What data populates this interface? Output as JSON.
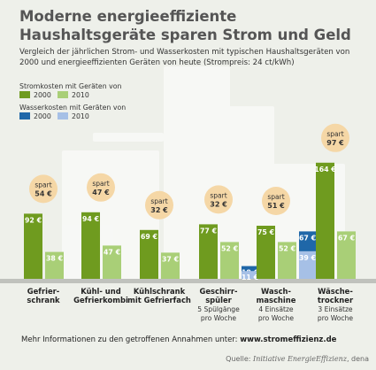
{
  "title": "Moderne energieeffiziente Haushaltsgeräte sparen Strom und Geld",
  "subtitle": "Vergleich der jährlichen Strom- und Wasserkosten mit typischen Haushaltsgeräten von 2000 und energieeffizienten Geräten von heute (Strompreis: 24 ct/kWh)",
  "footer": {
    "info_prefix": "Mehr Informationen zu den getroffenen Annahmen unter:",
    "info_link": "www.stromeffizienz.de",
    "source_prefix": "Quelle:",
    "source_name": "Initiative EnergieEffizienz",
    "source_suffix": ", dena"
  },
  "colors": {
    "strom_2000": "#6f9b1f",
    "strom_2010": "#a9cf77",
    "wasser_2000": "#1f67a8",
    "wasser_2010": "#a6c0e6",
    "spart_circle": "#f5d7a6",
    "background": "#eef0ea",
    "floor": "#c0c2bd"
  },
  "chart_data": {
    "type": "bar",
    "title": "Moderne energieeffiziente Haushaltsgeräte sparen Strom und Geld",
    "unit": "€",
    "legend": {
      "strom_title": "Stromkosten mit Geräten von",
      "wasser_title": "Wasserkosten mit Geräten von",
      "year_2000": "2000",
      "year_2010": "2010"
    },
    "spart_label": "spart",
    "appliances": [
      {
        "name": [
          "Gefrier-",
          "schrank"
        ],
        "strom_2000": 92,
        "strom_2010": 38,
        "wasser_2000": null,
        "wasser_2010": null,
        "saving": 54
      },
      {
        "name": [
          "Kühl- und",
          "Gefrierkombi"
        ],
        "strom_2000": 94,
        "strom_2010": 47,
        "wasser_2000": null,
        "wasser_2010": null,
        "saving": 47
      },
      {
        "name": [
          "Kühlschrank",
          "mit Gefrierfach"
        ],
        "strom_2000": 69,
        "strom_2010": 37,
        "wasser_2000": null,
        "wasser_2010": null,
        "saving": 32
      },
      {
        "name": [
          "Geschirr-",
          "spüler"
        ],
        "note": [
          "5 Spülgänge",
          "pro Woche"
        ],
        "strom_2000": 77,
        "strom_2010": 52,
        "wasser_2000": 18,
        "wasser_2010": 11,
        "saving": 32
      },
      {
        "name": [
          "Wasch-",
          "maschine"
        ],
        "note": [
          "4 Einsätze",
          "pro Woche"
        ],
        "strom_2000": 75,
        "strom_2010": 52,
        "wasser_2000": 67,
        "wasser_2010": 39,
        "saving": 51
      },
      {
        "name": [
          "Wäsche-",
          "trockner"
        ],
        "note": [
          "3 Einsätze",
          "pro Woche"
        ],
        "strom_2000": 164,
        "strom_2010": 67,
        "wasser_2000": null,
        "wasser_2010": null,
        "saving": 97
      }
    ]
  }
}
